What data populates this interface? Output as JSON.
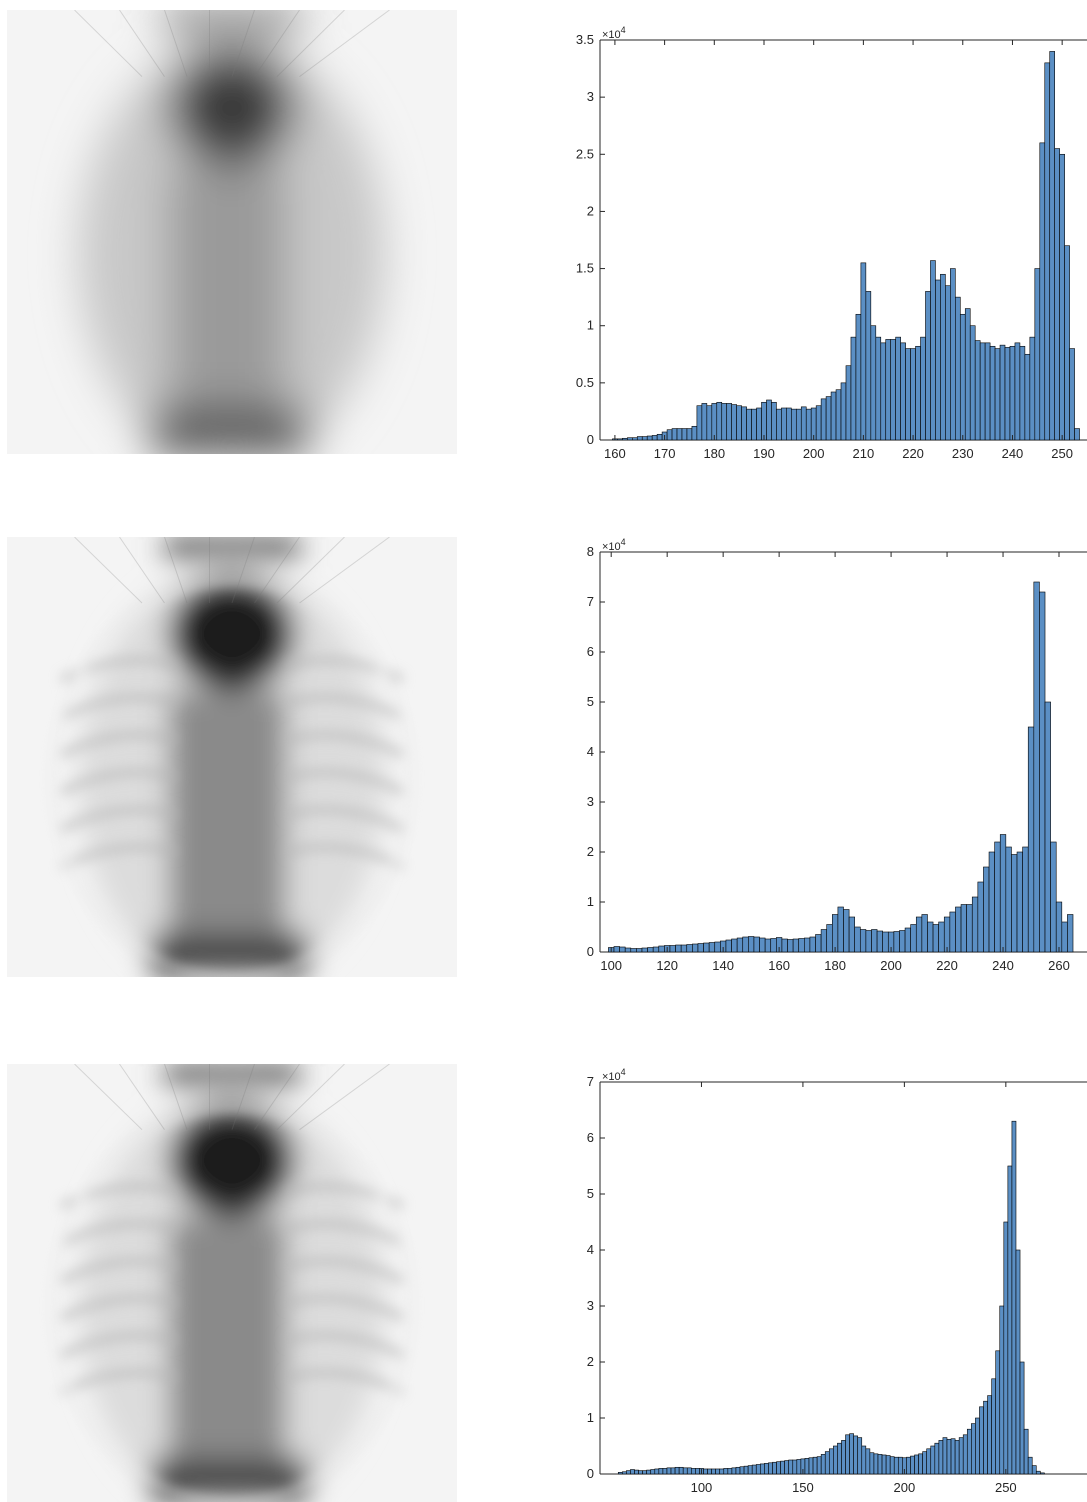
{
  "colors": {
    "bar_fill": "#5b8fc4",
    "bar_edge": "#000000",
    "axis": "#262626",
    "xray_dark": "#111111",
    "xray_light": "#f4f4f4"
  },
  "xray_images": [
    {
      "name": "xray-image-1",
      "style": "blurred"
    },
    {
      "name": "xray-image-2",
      "style": "sharper"
    },
    {
      "name": "xray-image-3",
      "style": "sharper"
    }
  ],
  "chart_data": [
    {
      "type": "bar",
      "title": "",
      "xlabel": "",
      "ylabel": "",
      "exponent": "×10",
      "exponent_power": "4",
      "xlim": [
        157,
        255
      ],
      "ylim": [
        0,
        35000
      ],
      "xticks": [
        160,
        170,
        180,
        190,
        200,
        210,
        220,
        230,
        240,
        250
      ],
      "yticks": [
        0,
        0.5,
        1,
        1.5,
        2,
        2.5,
        3,
        3.5
      ],
      "ytick_scale": 10000,
      "bin_width": 1,
      "x": [
        160,
        161,
        162,
        163,
        164,
        165,
        166,
        167,
        168,
        169,
        170,
        171,
        172,
        173,
        174,
        175,
        176,
        177,
        178,
        179,
        180,
        181,
        182,
        183,
        184,
        185,
        186,
        187,
        188,
        189,
        190,
        191,
        192,
        193,
        194,
        195,
        196,
        197,
        198,
        199,
        200,
        201,
        202,
        203,
        204,
        205,
        206,
        207,
        208,
        209,
        210,
        211,
        212,
        213,
        214,
        215,
        216,
        217,
        218,
        219,
        220,
        221,
        222,
        223,
        224,
        225,
        226,
        227,
        228,
        229,
        230,
        231,
        232,
        233,
        234,
        235,
        236,
        237,
        238,
        239,
        240,
        241,
        242,
        243,
        244,
        245,
        246,
        247,
        248,
        249,
        250,
        251,
        252,
        253
      ],
      "values": [
        100,
        100,
        150,
        200,
        200,
        300,
        300,
        350,
        400,
        500,
        700,
        900,
        1000,
        1000,
        1000,
        1000,
        1200,
        3000,
        3200,
        3000,
        3200,
        3300,
        3200,
        3200,
        3100,
        3000,
        2900,
        2700,
        2700,
        2800,
        3300,
        3500,
        3300,
        2700,
        2800,
        2800,
        2700,
        2700,
        2900,
        2700,
        2800,
        3000,
        3600,
        3800,
        4200,
        4400,
        5000,
        6500,
        9000,
        11000,
        15500,
        13000,
        10000,
        9000,
        8500,
        8800,
        8800,
        9000,
        8500,
        8000,
        8000,
        8200,
        9000,
        13000,
        15700,
        14000,
        14500,
        13500,
        15000,
        12500,
        11000,
        11500,
        10000,
        8700,
        8500,
        8500,
        8200,
        8000,
        8300,
        8100,
        8200,
        8500,
        8200,
        7500,
        9000,
        15000,
        26000,
        33000,
        34000,
        25500,
        25000,
        17000,
        8000,
        1000
      ]
    },
    {
      "type": "bar",
      "title": "",
      "xlabel": "",
      "ylabel": "",
      "exponent": "×10",
      "exponent_power": "4",
      "xlim": [
        96,
        270
      ],
      "ylim": [
        0,
        80000
      ],
      "xticks": [
        100,
        120,
        140,
        160,
        180,
        200,
        220,
        240,
        260
      ],
      "yticks": [
        0,
        1,
        2,
        3,
        4,
        5,
        6,
        7,
        8
      ],
      "ytick_scale": 10000,
      "bin_width": 1,
      "x": [
        100,
        102,
        104,
        106,
        108,
        110,
        112,
        114,
        116,
        118,
        120,
        122,
        124,
        126,
        128,
        130,
        132,
        134,
        136,
        138,
        140,
        142,
        144,
        146,
        148,
        150,
        152,
        154,
        156,
        158,
        160,
        162,
        164,
        166,
        168,
        170,
        172,
        174,
        176,
        178,
        180,
        182,
        184,
        186,
        188,
        190,
        192,
        194,
        196,
        198,
        200,
        202,
        204,
        206,
        208,
        210,
        212,
        214,
        216,
        218,
        220,
        222,
        224,
        226,
        228,
        230,
        232,
        234,
        236,
        238,
        240,
        242,
        244,
        246,
        248,
        250,
        252,
        254,
        256,
        258,
        260,
        262,
        264
      ],
      "values": [
        900,
        1100,
        1000,
        800,
        700,
        700,
        800,
        900,
        1000,
        1200,
        1300,
        1300,
        1400,
        1400,
        1500,
        1600,
        1700,
        1800,
        1900,
        2000,
        2200,
        2400,
        2600,
        2800,
        3000,
        3100,
        3000,
        2800,
        2600,
        2700,
        2900,
        2600,
        2500,
        2600,
        2700,
        2800,
        3000,
        3500,
        4500,
        5500,
        7500,
        9000,
        8500,
        7000,
        5000,
        4500,
        4300,
        4500,
        4200,
        4000,
        4000,
        4100,
        4300,
        4800,
        5500,
        7000,
        7500,
        6000,
        5500,
        6000,
        7000,
        8000,
        9000,
        9500,
        9500,
        11000,
        14000,
        17000,
        20000,
        22000,
        23500,
        21000,
        19500,
        20000,
        21000,
        45000,
        74000,
        72000,
        50000,
        22000,
        10000,
        6000,
        7500
      ]
    },
    {
      "type": "bar",
      "title": "",
      "xlabel": "",
      "ylabel": "",
      "exponent": "×10",
      "exponent_power": "4",
      "xlim": [
        50,
        290
      ],
      "ylim": [
        0,
        70000
      ],
      "xticks": [
        100,
        150,
        200,
        250
      ],
      "yticks": [
        0,
        1,
        2,
        3,
        4,
        5,
        6,
        7
      ],
      "ytick_scale": 10000,
      "bin_width": 1,
      "x": [
        60,
        62,
        64,
        66,
        68,
        70,
        72,
        74,
        76,
        78,
        80,
        82,
        84,
        86,
        88,
        90,
        92,
        94,
        96,
        98,
        100,
        102,
        104,
        106,
        108,
        110,
        112,
        114,
        116,
        118,
        120,
        122,
        124,
        126,
        128,
        130,
        132,
        134,
        136,
        138,
        140,
        142,
        144,
        146,
        148,
        150,
        152,
        154,
        156,
        158,
        160,
        162,
        164,
        166,
        168,
        170,
        172,
        174,
        176,
        178,
        180,
        182,
        184,
        186,
        188,
        190,
        192,
        194,
        196,
        198,
        200,
        202,
        204,
        206,
        208,
        210,
        212,
        214,
        216,
        218,
        220,
        222,
        224,
        226,
        228,
        230,
        232,
        234,
        236,
        238,
        240,
        242,
        244,
        246,
        248,
        250,
        252,
        254,
        256,
        258,
        260,
        262,
        264,
        266,
        268
      ],
      "values": [
        300,
        400,
        600,
        800,
        700,
        600,
        600,
        700,
        800,
        900,
        1000,
        1000,
        1100,
        1100,
        1200,
        1200,
        1100,
        1100,
        1000,
        1000,
        1000,
        900,
        900,
        900,
        900,
        900,
        1000,
        1000,
        1100,
        1200,
        1300,
        1400,
        1500,
        1600,
        1700,
        1800,
        1900,
        2000,
        2100,
        2200,
        2300,
        2400,
        2500,
        2500,
        2600,
        2700,
        2800,
        2900,
        3000,
        3100,
        3500,
        4000,
        4500,
        5000,
        5500,
        6000,
        7000,
        7200,
        6800,
        6500,
        5000,
        4500,
        3800,
        3600,
        3500,
        3400,
        3300,
        3100,
        3000,
        3000,
        2900,
        3000,
        3200,
        3400,
        3600,
        4000,
        4500,
        5000,
        5500,
        6000,
        6500,
        6200,
        6300,
        6000,
        6500,
        7000,
        8000,
        9000,
        10000,
        12000,
        13000,
        14000,
        17000,
        22000,
        30000,
        45000,
        55000,
        63000,
        40000,
        20000,
        8000,
        3000,
        1500,
        500,
        200
      ]
    }
  ]
}
